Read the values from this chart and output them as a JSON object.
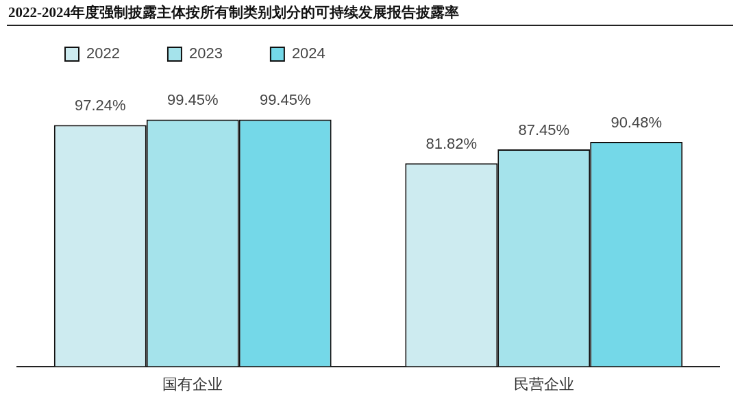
{
  "chart_data": {
    "type": "bar",
    "title": "2022-2024年度强制披露主体按所有制类别划分的可持续发展报告披露率",
    "categories": [
      "国有企业",
      "民营企业"
    ],
    "series": [
      {
        "name": "2022",
        "color": "#cdebf0",
        "values": [
          97.24,
          81.82
        ],
        "value_labels": [
          "97.24%",
          "81.82%"
        ]
      },
      {
        "name": "2023",
        "color": "#a5e3eb",
        "values": [
          99.45,
          87.45
        ],
        "value_labels": [
          "99.45%",
          "87.45%"
        ]
      },
      {
        "name": "2024",
        "color": "#74d8e8",
        "values": [
          99.45,
          90.48
        ],
        "value_labels": [
          "99.45%",
          "90.48%"
        ]
      }
    ],
    "tick_labels": "x",
    "grid": false,
    "legend": "top left"
  }
}
